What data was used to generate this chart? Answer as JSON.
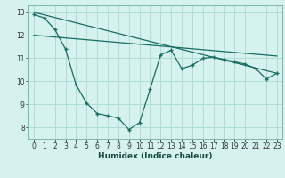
{
  "xlabel": "Humidex (Indice chaleur)",
  "bg_color": "#d5f2ee",
  "grid_color": "#b0ddd8",
  "line_color": "#1a6b60",
  "xlim": [
    -0.5,
    23.5
  ],
  "ylim": [
    7.5,
    13.3
  ],
  "yticks": [
    8,
    9,
    10,
    11,
    12,
    13
  ],
  "xticks": [
    0,
    1,
    2,
    3,
    4,
    5,
    6,
    7,
    8,
    9,
    10,
    11,
    12,
    13,
    14,
    15,
    16,
    17,
    18,
    19,
    20,
    21,
    22,
    23
  ],
  "line1_x": [
    0,
    1,
    2,
    3,
    4,
    5,
    6,
    7,
    8,
    9,
    10,
    11,
    12,
    13,
    14,
    15,
    16,
    17,
    18,
    19,
    20,
    21,
    22,
    23
  ],
  "line1_y": [
    12.9,
    12.75,
    12.25,
    11.4,
    9.85,
    9.05,
    8.6,
    8.5,
    8.4,
    7.9,
    8.2,
    9.65,
    11.15,
    11.35,
    10.55,
    10.7,
    11.0,
    11.05,
    10.95,
    10.85,
    10.75,
    10.55,
    10.1,
    10.35
  ],
  "line2_x": [
    0,
    23
  ],
  "line2_y": [
    13.0,
    10.35
  ],
  "line3_x": [
    0,
    23
  ],
  "line3_y": [
    12.0,
    11.1
  ]
}
